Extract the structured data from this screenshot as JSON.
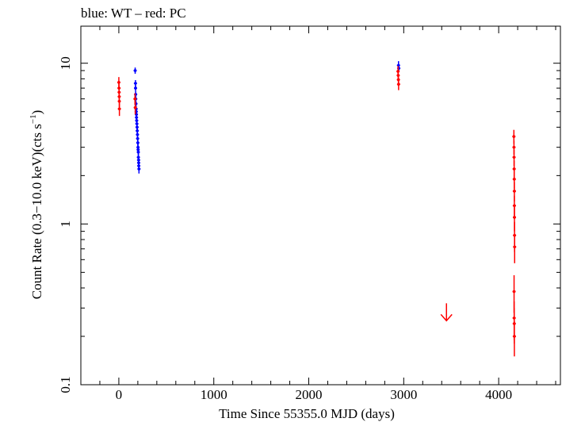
{
  "chart_data": {
    "type": "scatter",
    "title": "blue: WT – red: PC",
    "xlabel": "Time Since 55355.0 MJD (days)",
    "ylabel_main": "Count Rate (0.3−10.0 keV)(cts s",
    "ylabel_sup": "−1",
    "ylabel_end": ")",
    "xscale": "linear",
    "yscale": "log",
    "xlim": [
      -400,
      4650
    ],
    "ylim": [
      0.1,
      17
    ],
    "x_ticks": [
      {
        "value": 0,
        "label": "0"
      },
      {
        "value": 1000,
        "label": "1000"
      },
      {
        "value": 2000,
        "label": "2000"
      },
      {
        "value": 3000,
        "label": "3000"
      },
      {
        "value": 4000,
        "label": "4000"
      }
    ],
    "y_ticks": [
      {
        "value": 0.1,
        "label": "0.1"
      },
      {
        "value": 1,
        "label": "1"
      },
      {
        "value": 10,
        "label": "10"
      }
    ],
    "grid": false,
    "colors": {
      "wt": "#0000ff",
      "pc": "#ff0000",
      "axis": "#000000"
    },
    "series": [
      {
        "mode": "WT",
        "color": "#0000ff",
        "points": [
          [
            172,
            9.0,
            0.4
          ],
          [
            175,
            7.5,
            0.35
          ],
          [
            176,
            7.0,
            0.3
          ],
          [
            177,
            6.4,
            0.3
          ],
          [
            178,
            6.0,
            0.3
          ],
          [
            180,
            5.6,
            0.25
          ],
          [
            182,
            5.2,
            0.25
          ],
          [
            183,
            5.0,
            0.25
          ],
          [
            185,
            4.8,
            0.25
          ],
          [
            186,
            4.6,
            0.22
          ],
          [
            188,
            4.4,
            0.22
          ],
          [
            190,
            4.2,
            0.2
          ],
          [
            192,
            4.0,
            0.2
          ],
          [
            194,
            3.8,
            0.2
          ],
          [
            196,
            3.6,
            0.2
          ],
          [
            198,
            3.4,
            0.18
          ],
          [
            200,
            3.2,
            0.18
          ],
          [
            202,
            3.0,
            0.16
          ],
          [
            203,
            2.9,
            0.16
          ],
          [
            205,
            2.8,
            0.15
          ],
          [
            206,
            2.6,
            0.15
          ],
          [
            208,
            2.5,
            0.14
          ],
          [
            209,
            2.4,
            0.14
          ],
          [
            210,
            2.3,
            0.14
          ],
          [
            212,
            2.2,
            0.14
          ],
          [
            2945,
            9.7,
            0.6
          ],
          [
            2948,
            9.3,
            0.5
          ]
        ]
      },
      {
        "mode": "PC",
        "color": "#ff0000",
        "points": [
          [
            0,
            7.6,
            0.6
          ],
          [
            2,
            7.0,
            0.6
          ],
          [
            3,
            6.6,
            0.55
          ],
          [
            4,
            6.2,
            0.5
          ],
          [
            5,
            5.8,
            0.5
          ],
          [
            6,
            5.2,
            0.5
          ],
          [
            170,
            6.0,
            0.5
          ],
          [
            173,
            5.3,
            0.5
          ],
          [
            2940,
            8.9,
            0.7
          ],
          [
            2942,
            8.4,
            0.65
          ],
          [
            2944,
            7.9,
            0.6
          ],
          [
            2946,
            7.4,
            0.6
          ],
          [
            4160,
            3.5,
            0.35
          ],
          [
            4161,
            3.0,
            0.3
          ],
          [
            4162,
            2.6,
            0.3
          ],
          [
            4163,
            2.2,
            0.28
          ],
          [
            4164,
            1.9,
            0.25
          ],
          [
            4165,
            1.6,
            0.22
          ],
          [
            4165,
            1.3,
            0.2
          ],
          [
            4166,
            1.1,
            0.2
          ],
          [
            4167,
            0.85,
            0.18
          ],
          [
            4168,
            0.72,
            0.15
          ],
          [
            4162,
            0.38,
            0.1
          ],
          [
            4163,
            0.26,
            0.07
          ],
          [
            4164,
            0.24,
            0.06
          ],
          [
            4165,
            0.2,
            0.05
          ]
        ]
      }
    ],
    "upper_limits": [
      {
        "mode": "PC",
        "color": "#ff0000",
        "x": 3450,
        "y": 0.25
      }
    ]
  }
}
